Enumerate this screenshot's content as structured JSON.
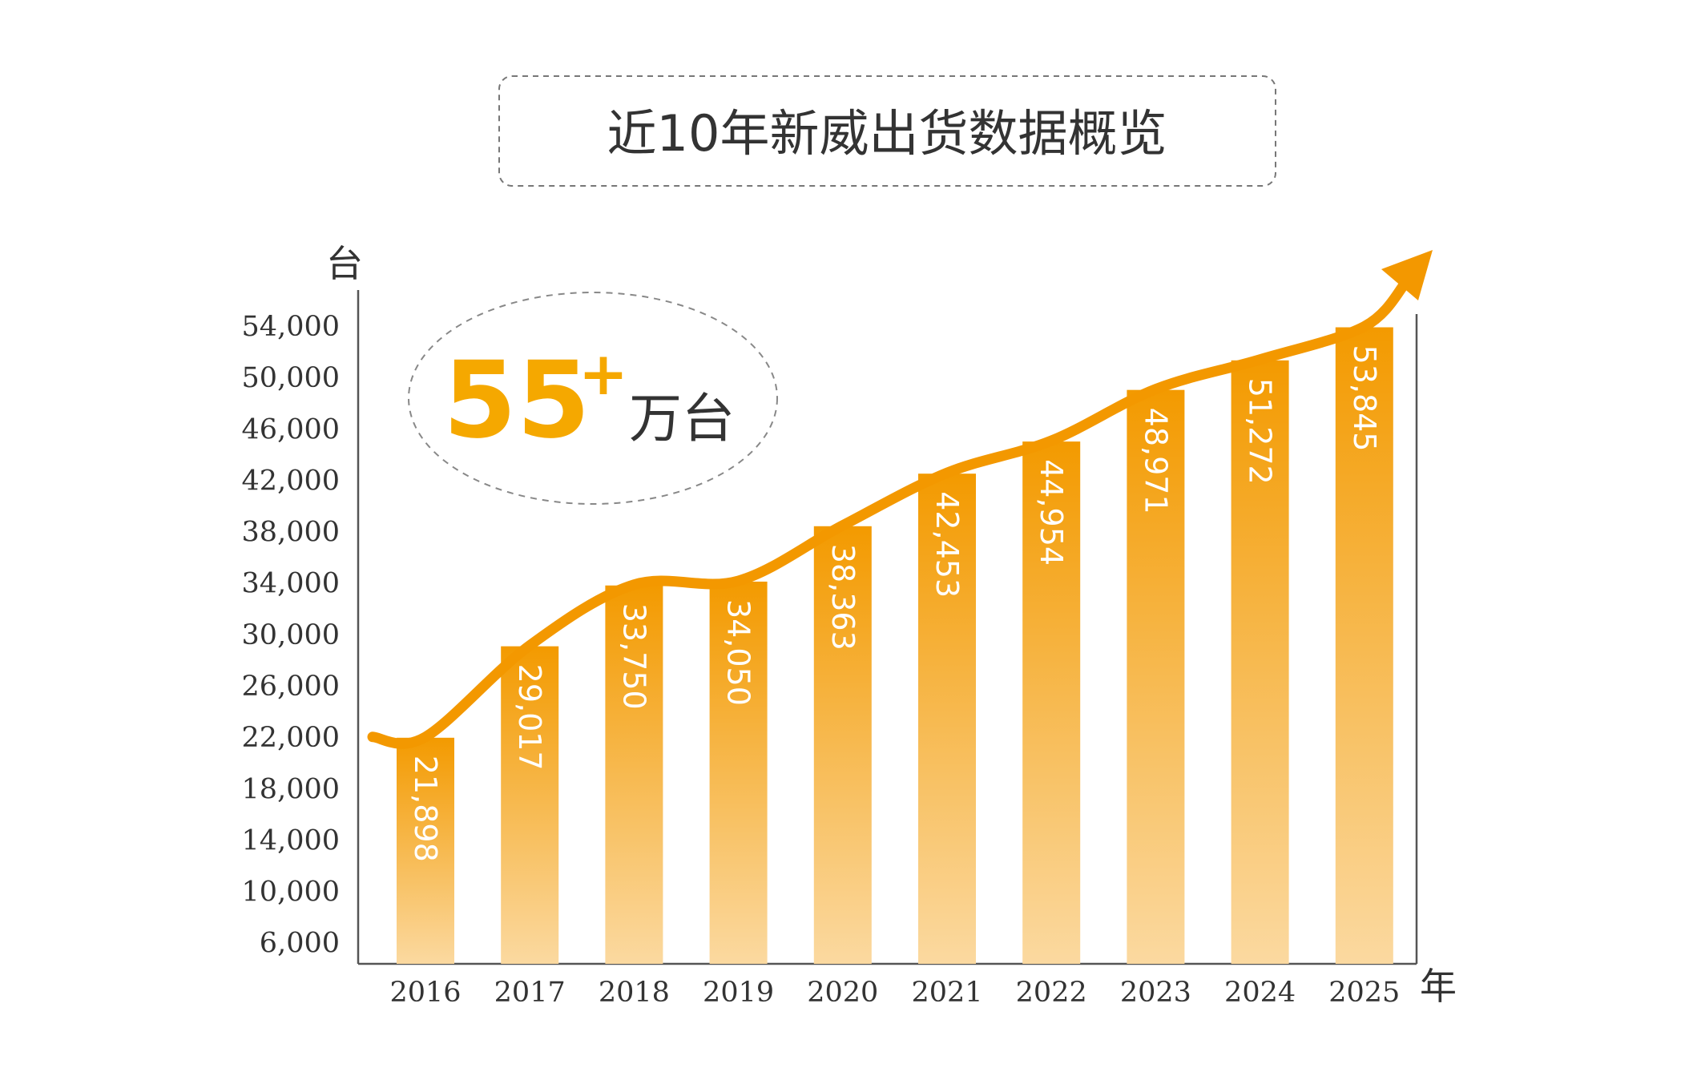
{
  "title": "近10年新威出货数据概览",
  "highlight": {
    "number": "55",
    "sup": "+",
    "unit": "万台"
  },
  "chart_data": {
    "type": "bar",
    "title": "近10年新威出货数据概览",
    "ylabel": "台",
    "xlabel": "年",
    "categories": [
      "2016",
      "2017",
      "2018",
      "2019",
      "2020",
      "2021",
      "2022",
      "2023",
      "2024",
      "2025"
    ],
    "values": [
      21898,
      29017,
      33750,
      34050,
      38363,
      42453,
      44954,
      48971,
      51272,
      53845
    ],
    "value_labels": [
      "21,898",
      "29,017",
      "33,750",
      "34,050",
      "38,363",
      "42,453",
      "44,954",
      "48,971",
      "51,272",
      "53,845"
    ],
    "y_ticks": [
      6000,
      10000,
      14000,
      18000,
      22000,
      26000,
      30000,
      34000,
      38000,
      42000,
      46000,
      50000,
      54000
    ],
    "y_tick_labels": [
      "6,000",
      "10,000",
      "14,000",
      "18,000",
      "22,000",
      "26,000",
      "30,000",
      "34,000",
      "38,000",
      "42,000",
      "46,000",
      "50,000",
      "54,000"
    ],
    "ylim": [
      4300,
      55000
    ],
    "grid": false,
    "legend": "none",
    "trend_arrow": true,
    "colors": {
      "bar_top": "#f39a00",
      "bar_bottom": "#fbd9a0",
      "trend": "#f39800",
      "highlight": "#f5a800",
      "text": "#333333",
      "axis": "#555555"
    }
  }
}
